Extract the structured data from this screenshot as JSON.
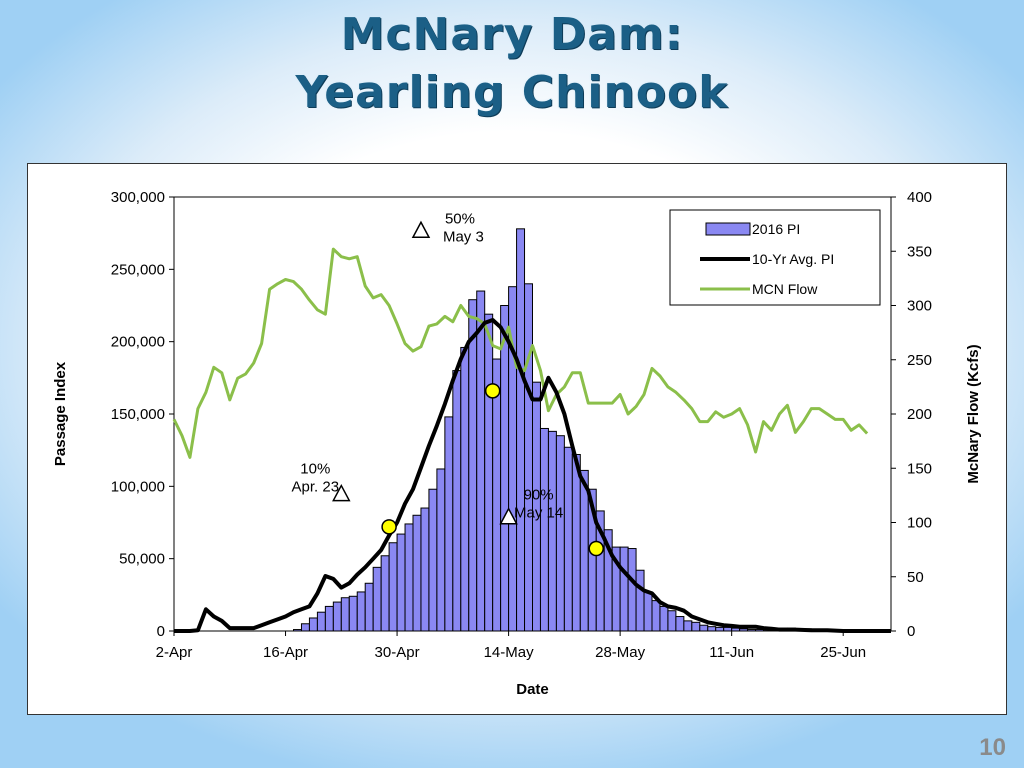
{
  "slide": {
    "title_line1": "McNary Dam:",
    "title_line2": "Yearling Chinook",
    "page_number": "10"
  },
  "colors": {
    "bar_fill": "#8a88f2",
    "bar_stroke": "#000000",
    "avg_line": "#000000",
    "flow_line": "#8bbf4a",
    "marker_circle": "#ffff00",
    "marker_triangle": "#ffffff"
  },
  "chart_data": {
    "type": "bar",
    "xlabel": "Date",
    "ylabel": "Passage Index",
    "y2label": "McNary Flow (Kcfs)",
    "ylim": [
      0,
      300000
    ],
    "y2lim": [
      0,
      400
    ],
    "y_ticks": [
      "0",
      "50,000",
      "100,000",
      "150,000",
      "200,000",
      "250,000",
      "300,000"
    ],
    "y2_ticks": [
      "0",
      "50",
      "100",
      "150",
      "200",
      "250",
      "300",
      "350",
      "400"
    ],
    "x_tick_labels": [
      "2-Apr",
      "16-Apr",
      "30-Apr",
      "14-May",
      "28-May",
      "11-Jun",
      "25-Jun"
    ],
    "x_start": "2-Apr",
    "x_days": 90,
    "x_tick_step_days": 14,
    "legend": {
      "position": "top-right",
      "entries": [
        "2016 PI",
        "10-Yr Avg. PI",
        "MCN Flow"
      ]
    },
    "series": [
      {
        "name": "2016 PI",
        "kind": "bar",
        "axis": "left",
        "values": [
          0,
          0,
          0,
          0,
          0,
          0,
          0,
          0,
          0,
          0,
          0,
          0,
          0,
          0,
          0,
          1000,
          5000,
          9000,
          13000,
          17000,
          20000,
          23000,
          24000,
          27000,
          33000,
          44000,
          52000,
          61000,
          67000,
          74000,
          80000,
          85000,
          98000,
          112000,
          148000,
          180000,
          196000,
          229000,
          235000,
          219000,
          188000,
          225000,
          238000,
          278000,
          240000,
          172000,
          140000,
          138000,
          135000,
          127000,
          122000,
          111000,
          98000,
          83000,
          70000,
          58000,
          58000,
          57000,
          42000,
          27000,
          21000,
          17000,
          14000,
          10000,
          7000,
          6000,
          4000,
          3000,
          2500,
          2500,
          2000,
          1500,
          1000,
          1000,
          800,
          800,
          2000,
          2000,
          1500,
          1500,
          1000,
          800,
          500,
          0,
          0,
          0,
          0,
          0,
          0,
          0,
          0
        ]
      },
      {
        "name": "10-Yr Avg. PI",
        "kind": "line",
        "axis": "left",
        "points": [
          [
            0,
            0
          ],
          [
            2,
            0
          ],
          [
            3,
            500
          ],
          [
            4,
            15000
          ],
          [
            5,
            10000
          ],
          [
            6,
            7000
          ],
          [
            7,
            2000
          ],
          [
            8,
            2000
          ],
          [
            9,
            2000
          ],
          [
            10,
            2000
          ],
          [
            11,
            4000
          ],
          [
            12,
            6000
          ],
          [
            13,
            8000
          ],
          [
            14,
            10000
          ],
          [
            15,
            13000
          ],
          [
            16,
            15000
          ],
          [
            17,
            17000
          ],
          [
            18,
            26000
          ],
          [
            19,
            38000
          ],
          [
            20,
            36000
          ],
          [
            21,
            30000
          ],
          [
            22,
            33000
          ],
          [
            23,
            39000
          ],
          [
            24,
            44000
          ],
          [
            25,
            50000
          ],
          [
            26,
            56000
          ],
          [
            27,
            66000
          ],
          [
            28,
            75000
          ],
          [
            29,
            88000
          ],
          [
            30,
            98000
          ],
          [
            31,
            113000
          ],
          [
            32,
            128000
          ],
          [
            33,
            142000
          ],
          [
            34,
            157000
          ],
          [
            35,
            173000
          ],
          [
            36,
            188000
          ],
          [
            37,
            200000
          ],
          [
            38,
            206000
          ],
          [
            39,
            213000
          ],
          [
            40,
            215000
          ],
          [
            41,
            210000
          ],
          [
            42,
            200000
          ],
          [
            43,
            188000
          ],
          [
            44,
            173000
          ],
          [
            45,
            160000
          ],
          [
            46,
            160000
          ],
          [
            47,
            175000
          ],
          [
            48,
            165000
          ],
          [
            49,
            150000
          ],
          [
            50,
            128000
          ],
          [
            51,
            107000
          ],
          [
            52,
            97000
          ],
          [
            53,
            75000
          ],
          [
            54,
            64000
          ],
          [
            55,
            52000
          ],
          [
            56,
            44000
          ],
          [
            57,
            38000
          ],
          [
            58,
            32000
          ],
          [
            59,
            28000
          ],
          [
            60,
            26000
          ],
          [
            61,
            20000
          ],
          [
            62,
            17000
          ],
          [
            63,
            16000
          ],
          [
            64,
            14000
          ],
          [
            65,
            10000
          ],
          [
            66,
            8000
          ],
          [
            67,
            6000
          ],
          [
            68,
            5000
          ],
          [
            69,
            4000
          ],
          [
            70,
            3500
          ],
          [
            71,
            3000
          ],
          [
            72,
            3000
          ],
          [
            73,
            3000
          ],
          [
            74,
            2000
          ],
          [
            75,
            1500
          ],
          [
            76,
            1000
          ],
          [
            77,
            1000
          ],
          [
            78,
            1000
          ],
          [
            80,
            500
          ],
          [
            82,
            500
          ],
          [
            84,
            0
          ],
          [
            90,
            0
          ]
        ]
      },
      {
        "name": "MCN Flow",
        "kind": "line",
        "axis": "right",
        "points": [
          [
            0,
            195
          ],
          [
            1,
            180
          ],
          [
            2,
            160
          ],
          [
            3,
            205
          ],
          [
            4,
            220
          ],
          [
            5,
            243
          ],
          [
            6,
            238
          ],
          [
            7,
            213
          ],
          [
            8,
            233
          ],
          [
            9,
            237
          ],
          [
            10,
            247
          ],
          [
            11,
            265
          ],
          [
            12,
            315
          ],
          [
            13,
            320
          ],
          [
            14,
            324
          ],
          [
            15,
            322
          ],
          [
            16,
            315
          ],
          [
            17,
            305
          ],
          [
            18,
            296
          ],
          [
            19,
            292
          ],
          [
            20,
            352
          ],
          [
            21,
            345
          ],
          [
            22,
            343
          ],
          [
            23,
            345
          ],
          [
            24,
            318
          ],
          [
            25,
            307
          ],
          [
            26,
            310
          ],
          [
            27,
            300
          ],
          [
            28,
            283
          ],
          [
            29,
            265
          ],
          [
            30,
            258
          ],
          [
            31,
            262
          ],
          [
            32,
            281
          ],
          [
            33,
            283
          ],
          [
            34,
            290
          ],
          [
            35,
            285
          ],
          [
            36,
            300
          ],
          [
            37,
            290
          ],
          [
            38,
            288
          ],
          [
            39,
            283
          ],
          [
            40,
            263
          ],
          [
            41,
            260
          ],
          [
            42,
            280
          ],
          [
            43,
            243
          ],
          [
            44,
            240
          ],
          [
            45,
            263
          ],
          [
            46,
            240
          ],
          [
            47,
            203
          ],
          [
            48,
            218
          ],
          [
            49,
            225
          ],
          [
            50,
            238
          ],
          [
            51,
            238
          ],
          [
            52,
            210
          ],
          [
            53,
            210
          ],
          [
            54,
            210
          ],
          [
            55,
            210
          ],
          [
            56,
            218
          ],
          [
            57,
            200
          ],
          [
            58,
            207
          ],
          [
            59,
            218
          ],
          [
            60,
            242
          ],
          [
            61,
            235
          ],
          [
            62,
            225
          ],
          [
            63,
            220
          ],
          [
            64,
            213
          ],
          [
            65,
            205
          ],
          [
            66,
            193
          ],
          [
            67,
            193
          ],
          [
            68,
            202
          ],
          [
            69,
            197
          ],
          [
            70,
            200
          ],
          [
            71,
            205
          ],
          [
            72,
            190
          ],
          [
            73,
            165
          ],
          [
            74,
            193
          ],
          [
            75,
            185
          ],
          [
            76,
            200
          ],
          [
            77,
            208
          ],
          [
            78,
            183
          ],
          [
            79,
            193
          ],
          [
            80,
            205
          ],
          [
            81,
            205
          ],
          [
            82,
            200
          ],
          [
            83,
            195
          ],
          [
            84,
            195
          ],
          [
            85,
            185
          ],
          [
            86,
            190
          ],
          [
            87,
            182
          ]
        ]
      }
    ],
    "annotations": [
      {
        "label": "10%",
        "date_label": "Apr. 23",
        "day": 21,
        "value": 95000
      },
      {
        "label": "50%",
        "date_label": "May 3",
        "day": 31,
        "value": 277000
      },
      {
        "label": "90%",
        "date_label": "May 14",
        "day": 42,
        "value": 79000
      }
    ],
    "avg_markers": [
      {
        "day": 27,
        "value": 72000
      },
      {
        "day": 40,
        "value": 166000
      },
      {
        "day": 53,
        "value": 57000
      }
    ]
  }
}
